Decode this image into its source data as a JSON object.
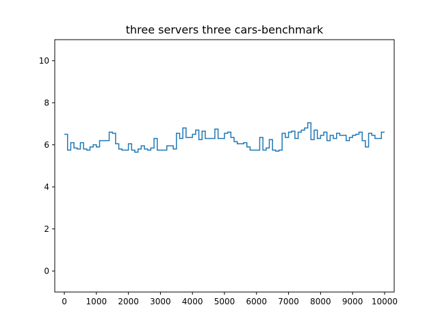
{
  "chart_data": {
    "type": "line",
    "title": "three servers three cars-benchmark",
    "xlabel": "",
    "ylabel": "",
    "xlim": [
      -300,
      10300
    ],
    "ylim": [
      -1,
      11
    ],
    "x_ticks": [
      0,
      1000,
      2000,
      3000,
      4000,
      5000,
      6000,
      7000,
      8000,
      9000,
      10000
    ],
    "y_ticks": [
      0,
      2,
      4,
      6,
      8,
      10
    ],
    "grid": false,
    "line_color": "#1f77b4",
    "series": [
      {
        "step": "post",
        "x": [
          0,
          100,
          200,
          300,
          400,
          500,
          600,
          700,
          800,
          900,
          1000,
          1100,
          1200,
          1300,
          1400,
          1500,
          1600,
          1700,
          1800,
          1900,
          2000,
          2100,
          2200,
          2300,
          2400,
          2500,
          2600,
          2700,
          2800,
          2900,
          3000,
          3100,
          3200,
          3300,
          3400,
          3500,
          3600,
          3700,
          3800,
          3900,
          4000,
          4100,
          4200,
          4300,
          4400,
          4500,
          4600,
          4700,
          4800,
          4900,
          5000,
          5100,
          5200,
          5300,
          5400,
          5500,
          5600,
          5700,
          5800,
          5900,
          6000,
          6100,
          6200,
          6300,
          6400,
          6500,
          6600,
          6700,
          6800,
          6900,
          7000,
          7100,
          7200,
          7300,
          7400,
          7500,
          7600,
          7700,
          7800,
          7900,
          8000,
          8100,
          8200,
          8300,
          8400,
          8500,
          8600,
          8700,
          8800,
          8900,
          9000,
          9100,
          9200,
          9300,
          9400,
          9500,
          9600,
          9700,
          9800,
          9900,
          10000
        ],
        "y": [
          6.5,
          5.75,
          6.1,
          5.85,
          5.8,
          6.1,
          5.8,
          5.75,
          5.9,
          6.0,
          5.9,
          6.2,
          6.2,
          6.2,
          6.6,
          6.55,
          6.05,
          5.8,
          5.75,
          5.75,
          6.05,
          5.75,
          5.65,
          5.8,
          5.95,
          5.8,
          5.75,
          5.85,
          6.3,
          5.75,
          5.75,
          5.75,
          5.95,
          5.95,
          5.8,
          6.55,
          6.3,
          6.8,
          6.35,
          6.35,
          6.5,
          6.7,
          6.25,
          6.65,
          6.3,
          6.3,
          6.3,
          6.75,
          6.3,
          6.3,
          6.55,
          6.6,
          6.35,
          6.15,
          6.05,
          6.05,
          6.1,
          5.9,
          5.75,
          5.75,
          5.75,
          6.35,
          5.75,
          5.85,
          6.25,
          5.75,
          5.7,
          5.75,
          6.55,
          6.35,
          6.6,
          6.65,
          6.3,
          6.6,
          6.7,
          6.8,
          7.05,
          6.25,
          6.7,
          6.3,
          6.45,
          6.6,
          6.2,
          6.45,
          6.3,
          6.55,
          6.45,
          6.45,
          6.2,
          6.35,
          6.45,
          6.5,
          6.6,
          6.2,
          5.9,
          6.55,
          6.45,
          6.3,
          6.3,
          6.6,
          6.6
        ]
      }
    ]
  }
}
